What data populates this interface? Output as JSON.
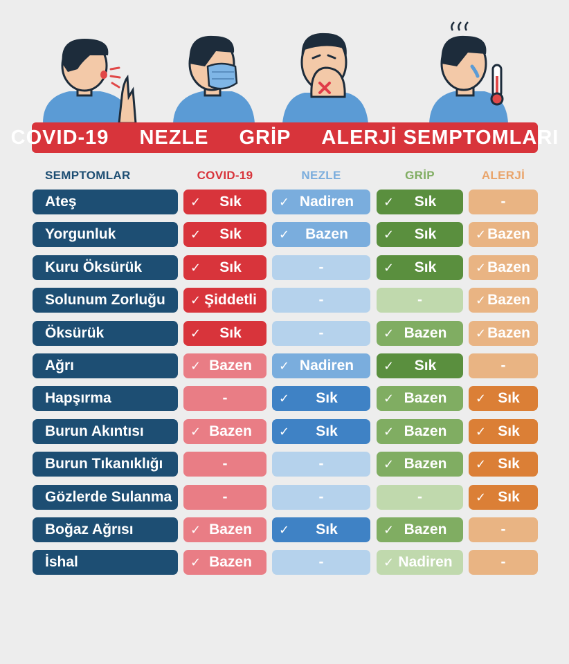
{
  "banner": {
    "parts": [
      "COVID-19",
      "NEZLE",
      "GRİP",
      "ALERJİ SEMPTOMLARI"
    ]
  },
  "headers": {
    "symptoms": "SEMPTOMLAR",
    "covid": "COVID-19",
    "nezle": "NEZLE",
    "grip": "GRİP",
    "alerji": "ALERJİ"
  },
  "colors": {
    "covid_strong": "#d8343b",
    "covid_light": "#e97d85",
    "nezle_strong": "#3f82c5",
    "nezle_mid": "#7aaddd",
    "nezle_light": "#b5d2ec",
    "grip_strong": "#5a8f3e",
    "grip_mid": "#80ad62",
    "grip_light": "#c0d9ad",
    "alerji_strong": "#db7f36",
    "alerji_light": "#e9b483",
    "label": "#1d4e73"
  },
  "rows": [
    {
      "label": "Ateş",
      "covid": {
        "text": "Sık",
        "check": true,
        "shade": "strong"
      },
      "nezle": {
        "text": "Nadiren",
        "check": true,
        "shade": "mid"
      },
      "grip": {
        "text": "Sık",
        "check": true,
        "shade": "strong"
      },
      "alerji": {
        "text": "-",
        "check": false,
        "shade": "light"
      }
    },
    {
      "label": "Yorgunluk",
      "covid": {
        "text": "Sık",
        "check": true,
        "shade": "strong"
      },
      "nezle": {
        "text": "Bazen",
        "check": true,
        "shade": "mid"
      },
      "grip": {
        "text": "Sık",
        "check": true,
        "shade": "strong"
      },
      "alerji": {
        "text": "Bazen",
        "check": true,
        "shade": "light"
      }
    },
    {
      "label": "Kuru Öksürük",
      "covid": {
        "text": "Sık",
        "check": true,
        "shade": "strong"
      },
      "nezle": {
        "text": "-",
        "check": false,
        "shade": "light"
      },
      "grip": {
        "text": "Sık",
        "check": true,
        "shade": "strong"
      },
      "alerji": {
        "text": "Bazen",
        "check": true,
        "shade": "light"
      }
    },
    {
      "label": "Solunum Zorluğu",
      "covid": {
        "text": "Şiddetli",
        "check": true,
        "shade": "strong"
      },
      "nezle": {
        "text": "-",
        "check": false,
        "shade": "light"
      },
      "grip": {
        "text": "-",
        "check": false,
        "shade": "light"
      },
      "alerji": {
        "text": "Bazen",
        "check": true,
        "shade": "light"
      }
    },
    {
      "label": "Öksürük",
      "covid": {
        "text": "Sık",
        "check": true,
        "shade": "strong"
      },
      "nezle": {
        "text": "-",
        "check": false,
        "shade": "light"
      },
      "grip": {
        "text": "Bazen",
        "check": true,
        "shade": "mid"
      },
      "alerji": {
        "text": "Bazen",
        "check": true,
        "shade": "light"
      }
    },
    {
      "label": "Ağrı",
      "covid": {
        "text": "Bazen",
        "check": true,
        "shade": "light"
      },
      "nezle": {
        "text": "Nadiren",
        "check": true,
        "shade": "mid"
      },
      "grip": {
        "text": "Sık",
        "check": true,
        "shade": "strong"
      },
      "alerji": {
        "text": "-",
        "check": false,
        "shade": "light"
      }
    },
    {
      "label": "Hapşırma",
      "covid": {
        "text": "-",
        "check": false,
        "shade": "light"
      },
      "nezle": {
        "text": "Sık",
        "check": true,
        "shade": "strong"
      },
      "grip": {
        "text": "Bazen",
        "check": true,
        "shade": "mid"
      },
      "alerji": {
        "text": "Sık",
        "check": true,
        "shade": "strong"
      }
    },
    {
      "label": "Burun Akıntısı",
      "covid": {
        "text": "Bazen",
        "check": true,
        "shade": "light"
      },
      "nezle": {
        "text": "Sık",
        "check": true,
        "shade": "strong"
      },
      "grip": {
        "text": "Bazen",
        "check": true,
        "shade": "mid"
      },
      "alerji": {
        "text": "Sık",
        "check": true,
        "shade": "strong"
      }
    },
    {
      "label": "Burun Tıkanıklığı",
      "covid": {
        "text": "-",
        "check": false,
        "shade": "light"
      },
      "nezle": {
        "text": "-",
        "check": false,
        "shade": "light"
      },
      "grip": {
        "text": "Bazen",
        "check": true,
        "shade": "mid"
      },
      "alerji": {
        "text": "Sık",
        "check": true,
        "shade": "strong"
      }
    },
    {
      "label": "Gözlerde Sulanma",
      "covid": {
        "text": "-",
        "check": false,
        "shade": "light"
      },
      "nezle": {
        "text": "-",
        "check": false,
        "shade": "light"
      },
      "grip": {
        "text": "-",
        "check": false,
        "shade": "light"
      },
      "alerji": {
        "text": "Sık",
        "check": true,
        "shade": "strong"
      }
    },
    {
      "label": "Boğaz Ağrısı",
      "covid": {
        "text": "Bazen",
        "check": true,
        "shade": "light"
      },
      "nezle": {
        "text": "Sık",
        "check": true,
        "shade": "strong"
      },
      "grip": {
        "text": "Bazen",
        "check": true,
        "shade": "mid"
      },
      "alerji": {
        "text": "-",
        "check": false,
        "shade": "light"
      }
    },
    {
      "label": "İshal",
      "covid": {
        "text": "Bazen",
        "check": true,
        "shade": "light"
      },
      "nezle": {
        "text": "-",
        "check": false,
        "shade": "light"
      },
      "grip": {
        "text": "Nadiren",
        "check": true,
        "shade": "light"
      },
      "alerji": {
        "text": "-",
        "check": false,
        "shade": "light"
      }
    }
  ],
  "illustrations": [
    "coughing-person",
    "masked-person",
    "sneezing-person",
    "feverish-person"
  ],
  "icons": {
    "check": "check-icon",
    "thermometer": "thermometer-icon"
  },
  "check_glyph": "✓"
}
